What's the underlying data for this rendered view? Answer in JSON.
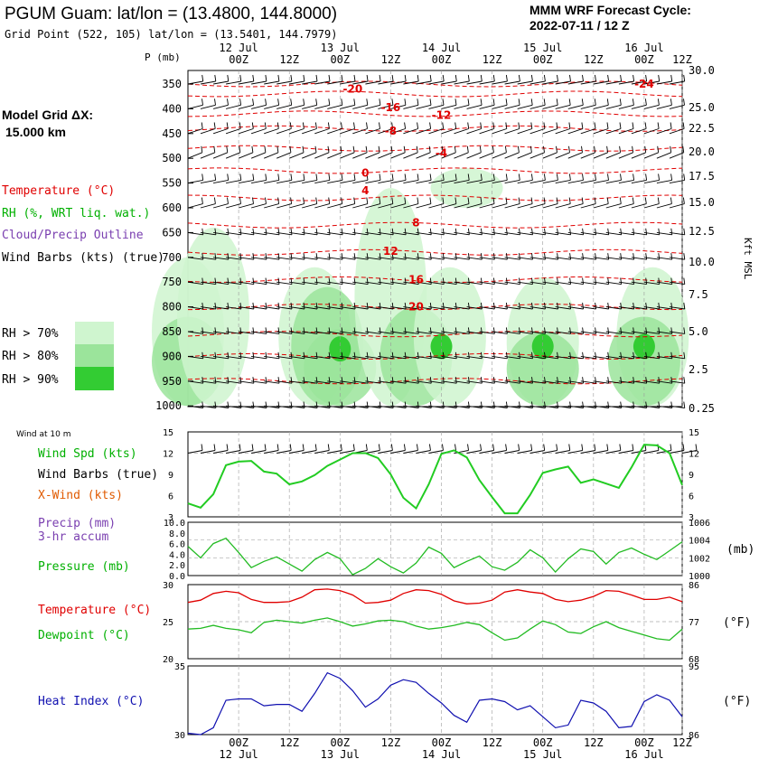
{
  "header": {
    "station_title": "PGUM Guam:  lat/lon = (13.4800, 144.8000)",
    "grid_point": "Grid Point (522, 105) lat/lon = (13.5401, 144.7979)",
    "cycle_title": "MMM WRF Forecast Cycle:",
    "cycle_value": "2022-07-11 / 12  Z"
  },
  "left_labels": {
    "model_grid_1": "Model Grid ΔX:",
    "model_grid_2": "15.000 km",
    "temperature": "Temperature (°C)",
    "rh": "RH (%, WRT liq. wat.)",
    "cloud": "Cloud/Precip Outline",
    "wind_barbs": "Wind Barbs (kts) (true)",
    "rh70": "RH > 70%",
    "rh80": "RH > 80%",
    "rh90": "RH > 90%",
    "wind_10m": "Wind at 10 m",
    "wind_spd": "Wind Spd (kts)",
    "wind_barbs_sfc": "Wind Barbs (true)",
    "xwind": "X-Wind (kts)",
    "precip": "Precip (mm)",
    "precip2": "3-hr accum",
    "pressure": "Pressure (mb)",
    "temp_sfc": "Temperature (°C)",
    "dewpoint": "Dewpoint (°C)",
    "heat_index": "Heat Index (°C)"
  },
  "axis_text": {
    "p_label": "P (mb)",
    "kft_label": "Kft MSL",
    "mb_label": "(mb)",
    "f_label_temp": "(°F)",
    "f_label_hi": "(°F)"
  },
  "colors": {
    "temperature": "#e00000",
    "rh": "#00c000",
    "cloud": "#7a3fb0",
    "xwind": "#e05a00",
    "heat_index": "#1010b0",
    "rh70": "#cff5cf",
    "rh80": "#9be49b",
    "rh90": "#33cc33"
  },
  "chart_data": [
    {
      "type": "line",
      "name": "cross_section",
      "x_day_labels": [
        "12 Jul",
        "13 Jul",
        "14 Jul",
        "15 Jul",
        "16 Jul"
      ],
      "x_time_labels": [
        "00Z",
        "12Z",
        "00Z",
        "12Z",
        "00Z",
        "12Z",
        "00Z",
        "12Z",
        "00Z",
        "12Z"
      ],
      "pressure_levels": [
        "350",
        "400",
        "450",
        "500",
        "550",
        "600",
        "650",
        "700",
        "750",
        "800",
        "850",
        "900",
        "950",
        "1000"
      ],
      "height_ticks_kft": [
        "30.0",
        "25.0",
        "22.5",
        "20.0",
        "17.5",
        "15.0",
        "12.5",
        "10.0",
        "7.5",
        "5.0",
        "2.5",
        "0.25"
      ],
      "temperature_contour_labels_c": [
        "-24",
        "-20",
        "-16",
        "-12",
        "-8",
        "-4",
        "0",
        "4",
        "8",
        "12",
        "16",
        "20"
      ]
    },
    {
      "type": "line",
      "name": "wind_speed_10m",
      "y_ticks_left": [
        "15",
        "12",
        "9",
        "6",
        "3"
      ],
      "y_ticks_right": [
        "15",
        "12",
        "9",
        "6",
        "3"
      ],
      "ylim": [
        3,
        15
      ],
      "x_hours": [
        0,
        3,
        6,
        9,
        12,
        15,
        18,
        21,
        24,
        27,
        30,
        33,
        36,
        39,
        42,
        45,
        48,
        51,
        54,
        57,
        60,
        63,
        66,
        69,
        72,
        75,
        78,
        81,
        84,
        87,
        90,
        93,
        96,
        99,
        102,
        105,
        108,
        111,
        114,
        117
      ],
      "values": [
        4.9,
        4.3,
        6.2,
        10.3,
        10.8,
        10.9,
        9.4,
        9.1,
        7.6,
        8.0,
        8.9,
        10.2,
        11.1,
        12.0,
        12.0,
        11.3,
        9.0,
        5.7,
        4.2,
        7.6,
        11.9,
        12.4,
        11.4,
        8.2,
        5.8,
        3.5,
        3.5,
        6.1,
        9.2,
        9.7,
        10.1,
        7.8,
        8.3,
        7.7,
        7.1,
        10.0,
        13.2,
        13.1,
        12.0,
        7.5
      ]
    },
    {
      "type": "line",
      "name": "pressure",
      "y_ticks_left": [
        "10.0",
        "8.0",
        "6.0",
        "4.0",
        "2.0",
        "0.0"
      ],
      "y_ticks_right": [
        "1006",
        "1004",
        "1002",
        "1000"
      ],
      "ylim": [
        1000,
        1006
      ],
      "x_hours": [
        0,
        3,
        6,
        9,
        12,
        15,
        18,
        21,
        24,
        27,
        30,
        33,
        36,
        39,
        42,
        45,
        48,
        51,
        54,
        57,
        60,
        63,
        66,
        69,
        72,
        75,
        78,
        81,
        84,
        87,
        90,
        93,
        96,
        99,
        102,
        105,
        108,
        111,
        114,
        117
      ],
      "values": [
        1003.3,
        1002.0,
        1003.6,
        1004.2,
        1002.6,
        1000.9,
        1001.6,
        1002.1,
        1001.3,
        1000.5,
        1001.8,
        1002.6,
        1001.9,
        1000.1,
        1000.8,
        1001.9,
        1001.0,
        1000.3,
        1001.4,
        1003.2,
        1002.5,
        1000.9,
        1001.6,
        1002.2,
        1001.0,
        1000.6,
        1001.5,
        1002.9,
        1002.0,
        1000.4,
        1001.9,
        1003.0,
        1002.7,
        1001.3,
        1002.6,
        1003.1,
        1002.4,
        1001.8,
        1002.8,
        1003.8
      ]
    },
    {
      "type": "line",
      "name": "temperature_dewpoint",
      "y_ticks_left": [
        "30",
        "25",
        "20"
      ],
      "y_ticks_right": [
        "86",
        "77",
        "68"
      ],
      "ylim": [
        20,
        30
      ],
      "x_hours": [
        0,
        3,
        6,
        9,
        12,
        15,
        18,
        21,
        24,
        27,
        30,
        33,
        36,
        39,
        42,
        45,
        48,
        51,
        54,
        57,
        60,
        63,
        66,
        69,
        72,
        75,
        78,
        81,
        84,
        87,
        90,
        93,
        96,
        99,
        102,
        105,
        108,
        111,
        114,
        117
      ],
      "series": [
        {
          "name": "Temperature",
          "values": [
            27.6,
            27.9,
            28.8,
            29.1,
            28.9,
            28.0,
            27.6,
            27.6,
            27.7,
            28.3,
            29.3,
            29.4,
            29.2,
            28.6,
            27.5,
            27.6,
            27.9,
            28.8,
            29.3,
            29.2,
            28.7,
            27.8,
            27.4,
            27.5,
            27.9,
            29.0,
            29.3,
            29.0,
            28.8,
            28.0,
            27.7,
            27.9,
            28.4,
            29.2,
            29.1,
            28.6,
            28.0,
            28.0,
            28.3,
            27.7
          ]
        },
        {
          "name": "Dewpoint",
          "values": [
            24.0,
            24.1,
            24.5,
            24.1,
            23.9,
            23.5,
            24.9,
            25.2,
            25.0,
            24.8,
            25.2,
            25.5,
            25.0,
            24.4,
            24.7,
            25.1,
            25.2,
            25.0,
            24.4,
            24.0,
            24.2,
            24.5,
            24.9,
            24.6,
            23.5,
            22.5,
            22.8,
            24.0,
            25.1,
            24.6,
            23.6,
            23.4,
            24.3,
            25.0,
            24.2,
            23.7,
            23.2,
            22.7,
            22.5,
            24.0
          ]
        }
      ]
    },
    {
      "type": "line",
      "name": "heat_index",
      "y_ticks_left": [
        "35",
        "30"
      ],
      "y_ticks_right": [
        "95",
        "86"
      ],
      "ylim": [
        30,
        35
      ],
      "x_hours": [
        0,
        3,
        6,
        9,
        12,
        15,
        18,
        21,
        24,
        27,
        30,
        33,
        36,
        39,
        42,
        45,
        48,
        51,
        54,
        57,
        60,
        63,
        66,
        69,
        72,
        75,
        78,
        81,
        84,
        87,
        90,
        93,
        96,
        99,
        102,
        105,
        108,
        111,
        114,
        117
      ],
      "values": [
        30.1,
        30.0,
        30.5,
        32.5,
        32.6,
        32.6,
        32.1,
        32.2,
        32.2,
        31.7,
        33.0,
        34.5,
        34.1,
        33.2,
        32.0,
        32.6,
        33.6,
        34.0,
        33.8,
        33.0,
        32.3,
        31.4,
        30.9,
        32.5,
        32.6,
        32.4,
        31.8,
        32.1,
        31.3,
        30.5,
        30.7,
        32.5,
        32.3,
        31.7,
        30.5,
        30.6,
        32.4,
        32.9,
        32.5,
        31.3
      ]
    }
  ],
  "bottom_axis": {
    "x_time_labels": [
      "00Z",
      "12Z",
      "00Z",
      "12Z",
      "00Z",
      "12Z",
      "00Z",
      "12Z",
      "00Z",
      "12Z"
    ],
    "x_day_labels": [
      "12 Jul",
      "13 Jul",
      "14 Jul",
      "15 Jul",
      "16 Jul"
    ]
  }
}
